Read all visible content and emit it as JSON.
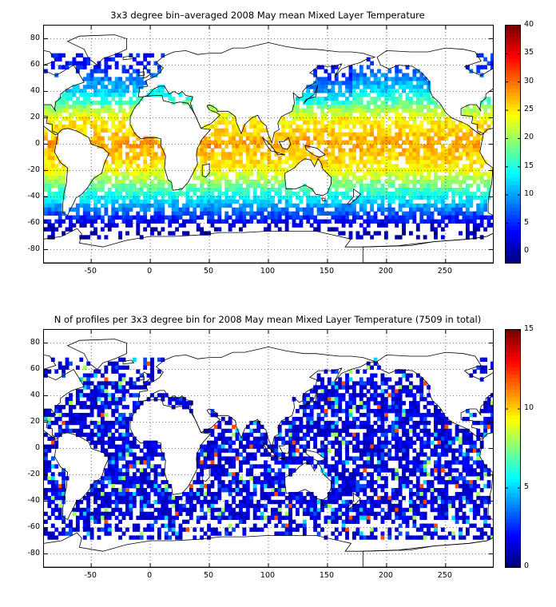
{
  "panels": [
    {
      "id": "temperature",
      "title": "3x3 degree bin–averaged 2008 May mean Mixed Layer Temperature",
      "colorbar_ticks": [
        "40",
        "35",
        "30",
        "25",
        "20",
        "15",
        "10",
        "5",
        "0"
      ],
      "colorbar_range": [
        -2,
        40
      ],
      "lat_ticks": [
        "80",
        "60",
        "40",
        "20",
        "0",
        "-20",
        "-40",
        "-60",
        "-80"
      ],
      "lon_ticks": [
        "-50",
        "0",
        "50",
        "100",
        "150",
        "200",
        "250"
      ]
    },
    {
      "id": "profile-count",
      "title": "N of profiles per 3x3 degree bin for 2008 May mean Mixed Layer Temperature  (7509 in total)",
      "colorbar_ticks": [
        "15",
        "10",
        "5",
        "0"
      ],
      "colorbar_range": [
        0,
        15
      ],
      "lat_ticks": [
        "80",
        "60",
        "40",
        "20",
        "0",
        "-20",
        "-40",
        "-60",
        "-80"
      ],
      "lon_ticks": [
        "-50",
        "0",
        "50",
        "100",
        "150",
        "200",
        "250"
      ]
    }
  ],
  "chart_data": [
    {
      "type": "heatmap",
      "title": "3x3 degree bin–averaged 2008 May mean Mixed Layer Temperature",
      "xlabel": "",
      "ylabel": "",
      "xlim": [
        -90,
        290
      ],
      "ylim": [
        -90,
        90
      ],
      "x_ticks": [
        -50,
        0,
        50,
        100,
        150,
        200,
        250
      ],
      "y_ticks": [
        -80,
        -60,
        -40,
        -20,
        0,
        20,
        40,
        60,
        80
      ],
      "bin_size_deg": 3,
      "colormap": "jet",
      "color_range": [
        -2,
        40
      ],
      "grid": true,
      "approx_zonal_mean_temperature": [
        {
          "lat": 60,
          "value": 5
        },
        {
          "lat": 40,
          "value": 13
        },
        {
          "lat": 20,
          "value": 24
        },
        {
          "lat": 0,
          "value": 28
        },
        {
          "lat": -20,
          "value": 24
        },
        {
          "lat": -40,
          "value": 14
        },
        {
          "lat": -55,
          "value": 5
        },
        {
          "lat": -65,
          "value": 0
        }
      ]
    },
    {
      "type": "heatmap",
      "title": "N of profiles per 3x3 degree bin for 2008 May mean Mixed Layer Temperature  (7509 in total)",
      "xlabel": "",
      "ylabel": "",
      "xlim": [
        -90,
        290
      ],
      "ylim": [
        -90,
        90
      ],
      "x_ticks": [
        -50,
        0,
        50,
        100,
        150,
        200,
        250
      ],
      "y_ticks": [
        -80,
        -60,
        -40,
        -20,
        0,
        20,
        40,
        60,
        80
      ],
      "bin_size_deg": 3,
      "colormap": "jet",
      "color_range": [
        0,
        15
      ],
      "grid": true,
      "total_profiles": 7509,
      "typical_count_per_bin": [
        1,
        3
      ]
    }
  ]
}
